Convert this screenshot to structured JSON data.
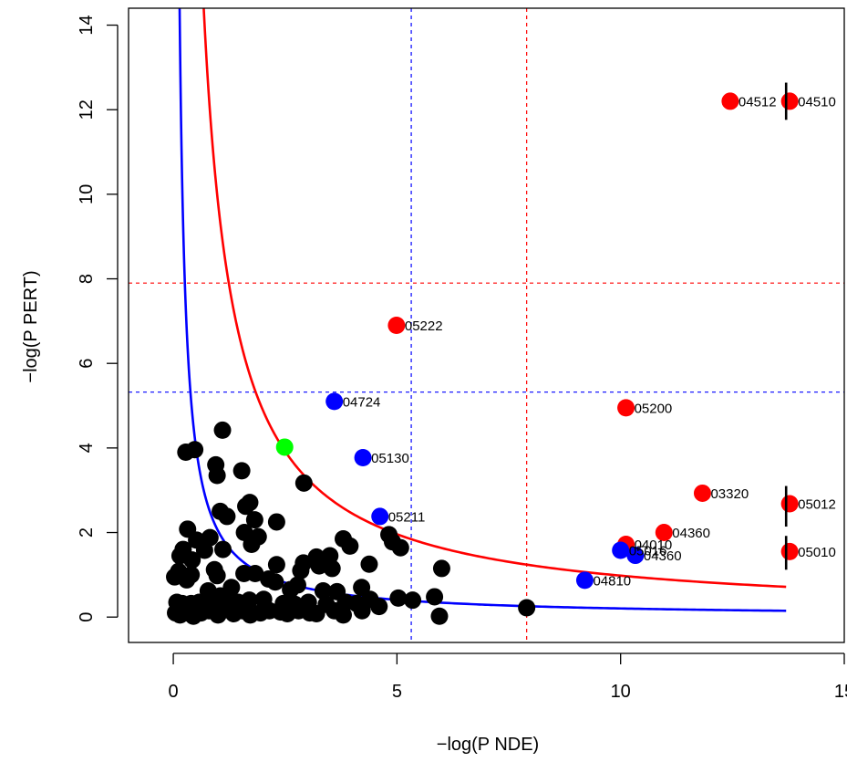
{
  "chart_data": {
    "type": "scatter",
    "title": "",
    "xlabel": "−log(P NDE)",
    "ylabel": "−log(P PERT)",
    "xlim": [
      -1,
      15
    ],
    "ylim": [
      -0.6,
      14.4
    ],
    "x_ticks": [
      0,
      5,
      10,
      15
    ],
    "y_ticks": [
      0,
      2,
      4,
      6,
      8,
      10,
      12,
      14
    ],
    "grid": false,
    "threshold_lines": [
      {
        "axis": "x",
        "value": 5.32,
        "color": "#0000ff",
        "style": "dashed"
      },
      {
        "axis": "x",
        "value": 7.9,
        "color": "#ff0000",
        "style": "dashed"
      },
      {
        "axis": "y",
        "value": 5.32,
        "color": "#0000ff",
        "style": "dashed"
      },
      {
        "axis": "y",
        "value": 7.9,
        "color": "#ff0000",
        "style": "dashed"
      }
    ],
    "curves": [
      {
        "name": "blue curve",
        "color": "#0000ff",
        "k": 2.04,
        "x_min": 0.13,
        "x_max": 13.7
      },
      {
        "name": "red curve",
        "color": "#ff0000",
        "k": 9.8,
        "x_min": 0.67,
        "x_max": 13.7
      }
    ],
    "error_bars": [
      {
        "x": 13.7,
        "y_low": 11.76,
        "y_high": 12.64
      },
      {
        "x": 13.7,
        "y_low": 2.14,
        "y_high": 3.1
      },
      {
        "x": 13.7,
        "y_low": 1.12,
        "y_high": 1.92
      }
    ],
    "colors": {
      "red": "#ff0000",
      "blue": "#0000ff",
      "green": "#00ff00",
      "black": "#000000"
    },
    "series": [
      {
        "color": "#ff0000",
        "points": [
          {
            "x": 12.45,
            "y": 12.2,
            "label": "04512"
          },
          {
            "x": 13.78,
            "y": 12.2,
            "label": "04510"
          },
          {
            "x": 4.99,
            "y": 6.9,
            "label": "05222"
          },
          {
            "x": 10.12,
            "y": 4.95,
            "label": "05200"
          },
          {
            "x": 11.83,
            "y": 2.93,
            "label": "03320"
          },
          {
            "x": 13.78,
            "y": 2.68,
            "label": "05012"
          },
          {
            "x": 10.97,
            "y": 2.0,
            "label": "04360"
          },
          {
            "x": 10.12,
            "y": 1.72,
            "label": "04010"
          },
          {
            "x": 13.78,
            "y": 1.55,
            "label": "05010"
          }
        ]
      },
      {
        "color": "#0000ff",
        "points": [
          {
            "x": 3.6,
            "y": 5.1,
            "label": "04724"
          },
          {
            "x": 4.24,
            "y": 3.77,
            "label": "05130"
          },
          {
            "x": 4.62,
            "y": 2.38,
            "label": "05211"
          },
          {
            "x": 10.0,
            "y": 1.58,
            "label": "05016"
          },
          {
            "x": 10.33,
            "y": 1.46,
            "label": "04360"
          },
          {
            "x": 9.2,
            "y": 0.87,
            "label": "04810"
          }
        ]
      },
      {
        "color": "#00ff00",
        "points": [
          {
            "x": 2.49,
            "y": 4.02
          }
        ]
      },
      {
        "color": "#000000",
        "points": [
          {
            "x": 7.9,
            "y": 0.22
          },
          {
            "x": 1.1,
            "y": 4.42
          },
          {
            "x": 0.28,
            "y": 3.9
          },
          {
            "x": 0.48,
            "y": 3.96
          },
          {
            "x": 0.95,
            "y": 3.6
          },
          {
            "x": 0.98,
            "y": 3.35
          },
          {
            "x": 1.53,
            "y": 3.46
          },
          {
            "x": 2.92,
            "y": 3.17
          },
          {
            "x": 1.71,
            "y": 2.71
          },
          {
            "x": 1.62,
            "y": 2.62
          },
          {
            "x": 1.05,
            "y": 2.5
          },
          {
            "x": 1.2,
            "y": 2.38
          },
          {
            "x": 1.82,
            "y": 2.3
          },
          {
            "x": 2.31,
            "y": 2.25
          },
          {
            "x": 0.32,
            "y": 2.08
          },
          {
            "x": 1.59,
            "y": 2.0
          },
          {
            "x": 1.9,
            "y": 1.9
          },
          {
            "x": 3.8,
            "y": 1.85
          },
          {
            "x": 4.82,
            "y": 1.95
          },
          {
            "x": 0.82,
            "y": 1.88
          },
          {
            "x": 0.52,
            "y": 1.82
          },
          {
            "x": 1.75,
            "y": 1.72
          },
          {
            "x": 3.95,
            "y": 1.68
          },
          {
            "x": 4.9,
            "y": 1.78
          },
          {
            "x": 5.08,
            "y": 1.64
          },
          {
            "x": 0.22,
            "y": 1.6
          },
          {
            "x": 1.11,
            "y": 1.6
          },
          {
            "x": 0.7,
            "y": 1.58
          },
          {
            "x": 0.15,
            "y": 1.45
          },
          {
            "x": 3.2,
            "y": 1.42
          },
          {
            "x": 3.5,
            "y": 1.45
          },
          {
            "x": 0.42,
            "y": 1.35
          },
          {
            "x": 2.31,
            "y": 1.24
          },
          {
            "x": 2.91,
            "y": 1.28
          },
          {
            "x": 3.26,
            "y": 1.21
          },
          {
            "x": 4.38,
            "y": 1.25
          },
          {
            "x": 6.0,
            "y": 1.15
          },
          {
            "x": 0.92,
            "y": 1.12
          },
          {
            "x": 3.55,
            "y": 1.15
          },
          {
            "x": 2.85,
            "y": 1.1
          },
          {
            "x": 0.12,
            "y": 1.08
          },
          {
            "x": 0.03,
            "y": 0.95
          },
          {
            "x": 0.4,
            "y": 1.0
          },
          {
            "x": 1.58,
            "y": 1.03
          },
          {
            "x": 1.83,
            "y": 1.03
          },
          {
            "x": 0.98,
            "y": 0.98
          },
          {
            "x": 2.13,
            "y": 0.9
          },
          {
            "x": 2.28,
            "y": 0.83
          },
          {
            "x": 0.3,
            "y": 0.88
          },
          {
            "x": 1.3,
            "y": 0.7
          },
          {
            "x": 2.78,
            "y": 0.76
          },
          {
            "x": 2.62,
            "y": 0.65
          },
          {
            "x": 3.66,
            "y": 0.6
          },
          {
            "x": 4.21,
            "y": 0.7
          },
          {
            "x": 3.35,
            "y": 0.62
          },
          {
            "x": 4.4,
            "y": 0.42
          },
          {
            "x": 5.03,
            "y": 0.45
          },
          {
            "x": 5.84,
            "y": 0.48
          },
          {
            "x": 0.78,
            "y": 0.62
          },
          {
            "x": 0.08,
            "y": 0.35
          },
          {
            "x": 0.2,
            "y": 0.32
          },
          {
            "x": 0.4,
            "y": 0.32
          },
          {
            "x": 0.58,
            "y": 0.35
          },
          {
            "x": 0.86,
            "y": 0.38
          },
          {
            "x": 1.05,
            "y": 0.5
          },
          {
            "x": 1.22,
            "y": 0.32
          },
          {
            "x": 1.45,
            "y": 0.35
          },
          {
            "x": 1.7,
            "y": 0.4
          },
          {
            "x": 2.02,
            "y": 0.42
          },
          {
            "x": 2.46,
            "y": 0.32
          },
          {
            "x": 2.72,
            "y": 0.3
          },
          {
            "x": 3.02,
            "y": 0.35
          },
          {
            "x": 3.42,
            "y": 0.3
          },
          {
            "x": 3.85,
            "y": 0.35
          },
          {
            "x": 4.1,
            "y": 0.32
          },
          {
            "x": 4.6,
            "y": 0.25
          },
          {
            "x": 5.35,
            "y": 0.4
          },
          {
            "x": 0.05,
            "y": 0.1
          },
          {
            "x": 0.15,
            "y": 0.05
          },
          {
            "x": 0.28,
            "y": 0.1
          },
          {
            "x": 0.45,
            "y": 0.02
          },
          {
            "x": 0.62,
            "y": 0.1
          },
          {
            "x": 0.8,
            "y": 0.15
          },
          {
            "x": 1.0,
            "y": 0.05
          },
          {
            "x": 1.18,
            "y": 0.18
          },
          {
            "x": 1.35,
            "y": 0.08
          },
          {
            "x": 1.55,
            "y": 0.15
          },
          {
            "x": 1.72,
            "y": 0.05
          },
          {
            "x": 1.95,
            "y": 0.1
          },
          {
            "x": 2.15,
            "y": 0.15
          },
          {
            "x": 2.4,
            "y": 0.12
          },
          {
            "x": 2.55,
            "y": 0.08
          },
          {
            "x": 2.8,
            "y": 0.15
          },
          {
            "x": 3.05,
            "y": 0.1
          },
          {
            "x": 3.2,
            "y": 0.08
          },
          {
            "x": 3.6,
            "y": 0.15
          },
          {
            "x": 3.8,
            "y": 0.05
          },
          {
            "x": 4.22,
            "y": 0.15
          },
          {
            "x": 5.95,
            "y": 0.02
          }
        ]
      }
    ]
  }
}
